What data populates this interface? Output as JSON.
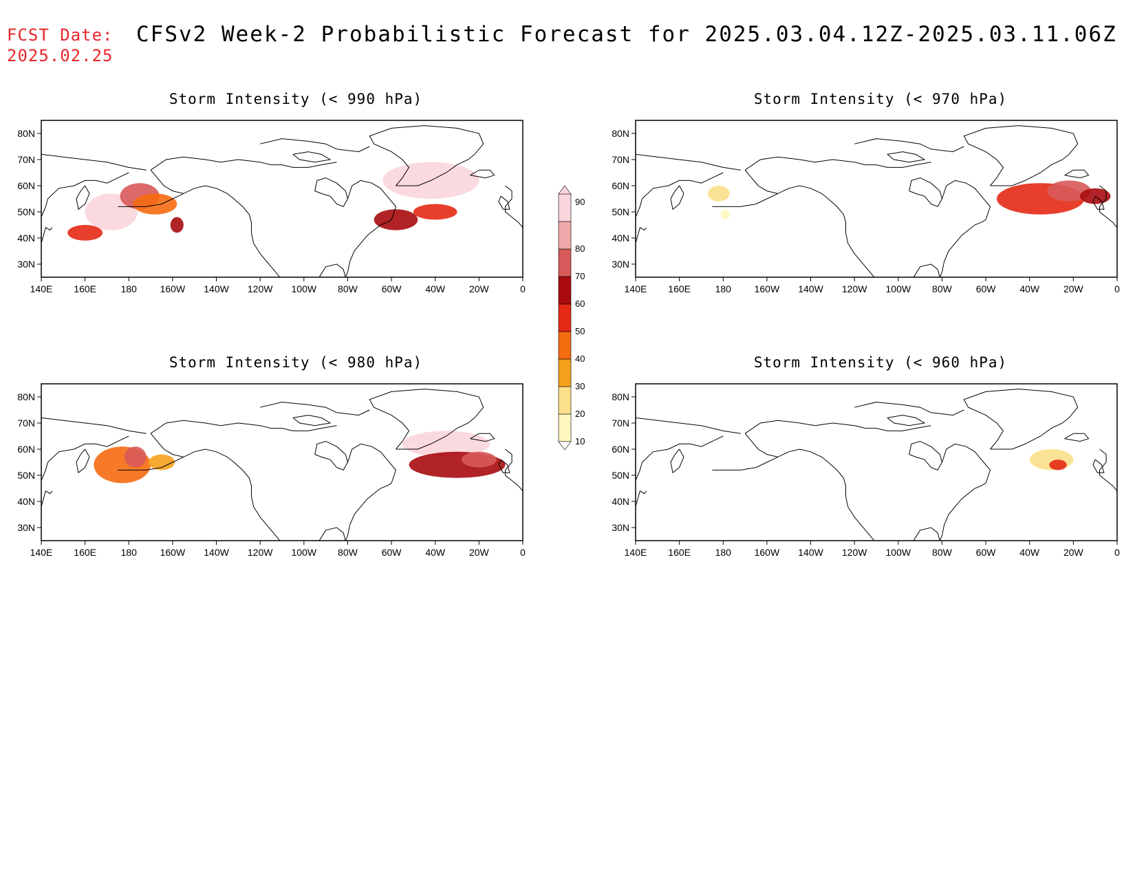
{
  "header": {
    "fcst_label": "FCST Date:",
    "fcst_date": "2025.02.25",
    "title": "CFSv2 Week-2 Probabilistic Forecast for 2025.03.04.12Z-2025.03.11.06Z"
  },
  "map_axes": {
    "lon_ticks": [
      "140E",
      "160E",
      "180",
      "160W",
      "140W",
      "120W",
      "100W",
      "80W",
      "60W",
      "40W",
      "20W",
      "0"
    ],
    "lat_ticks": [
      "80N",
      "70N",
      "60N",
      "50N",
      "40N",
      "30N"
    ],
    "lon_range": [
      140,
      360
    ],
    "lat_range": [
      25,
      85
    ]
  },
  "panels": [
    {
      "id": "p990",
      "title": "Storm Intensity (< 990 hPa)",
      "blobs": [
        {
          "lon": 160,
          "lat": 42,
          "rx": 8,
          "ry": 3,
          "level": 50
        },
        {
          "lon": 172,
          "lat": 50,
          "rx": 12,
          "ry": 7,
          "level": 90
        },
        {
          "lon": 185,
          "lat": 56,
          "rx": 9,
          "ry": 5,
          "level": 70
        },
        {
          "lon": 192,
          "lat": 53,
          "rx": 10,
          "ry": 4,
          "level": 40
        },
        {
          "lon": 202,
          "lat": 45,
          "rx": 3,
          "ry": 3,
          "level": 60
        },
        {
          "lon": 318,
          "lat": 62,
          "rx": 22,
          "ry": 7,
          "level": 90
        },
        {
          "lon": 302,
          "lat": 47,
          "rx": 10,
          "ry": 4,
          "level": 60
        },
        {
          "lon": 320,
          "lat": 50,
          "rx": 10,
          "ry": 3,
          "level": 50
        }
      ]
    },
    {
      "id": "p970",
      "title": "Storm Intensity (< 970 hPa)",
      "blobs": [
        {
          "lon": 178,
          "lat": 57,
          "rx": 5,
          "ry": 3,
          "level": 20
        },
        {
          "lon": 181,
          "lat": 49,
          "rx": 2,
          "ry": 2,
          "level": 10
        },
        {
          "lon": 325,
          "lat": 55,
          "rx": 20,
          "ry": 6,
          "level": 50
        },
        {
          "lon": 338,
          "lat": 58,
          "rx": 10,
          "ry": 4,
          "level": 70
        },
        {
          "lon": 350,
          "lat": 56,
          "rx": 7,
          "ry": 3,
          "level": 60
        }
      ]
    },
    {
      "id": "p980",
      "title": "Storm Intensity (< 980 hPa)",
      "blobs": [
        {
          "lon": 177,
          "lat": 54,
          "rx": 13,
          "ry": 7,
          "level": 40
        },
        {
          "lon": 183,
          "lat": 57,
          "rx": 5,
          "ry": 4,
          "level": 70
        },
        {
          "lon": 195,
          "lat": 55,
          "rx": 6,
          "ry": 3,
          "level": 30
        },
        {
          "lon": 325,
          "lat": 62,
          "rx": 20,
          "ry": 5,
          "level": 90
        },
        {
          "lon": 330,
          "lat": 54,
          "rx": 22,
          "ry": 5,
          "level": 60
        },
        {
          "lon": 340,
          "lat": 56,
          "rx": 8,
          "ry": 3,
          "level": 70
        }
      ]
    },
    {
      "id": "p960",
      "title": "Storm Intensity (< 960 hPa)",
      "blobs": [
        {
          "lon": 330,
          "lat": 56,
          "rx": 10,
          "ry": 4,
          "level": 20
        },
        {
          "lon": 333,
          "lat": 54,
          "rx": 4,
          "ry": 2,
          "level": 50
        }
      ]
    }
  ],
  "colorbar": {
    "levels": [
      10,
      20,
      30,
      40,
      50,
      60,
      70,
      80,
      90
    ],
    "labels": [
      "10",
      "20",
      "30",
      "40",
      "50",
      "60",
      "70",
      "80",
      "90"
    ],
    "colors": [
      "#fff6c0",
      "#fbe08a",
      "#f6a11b",
      "#f56b10",
      "#e42a14",
      "#a90b0e",
      "#d85a5a",
      "#eeaaaa",
      "#fad6dc"
    ]
  }
}
